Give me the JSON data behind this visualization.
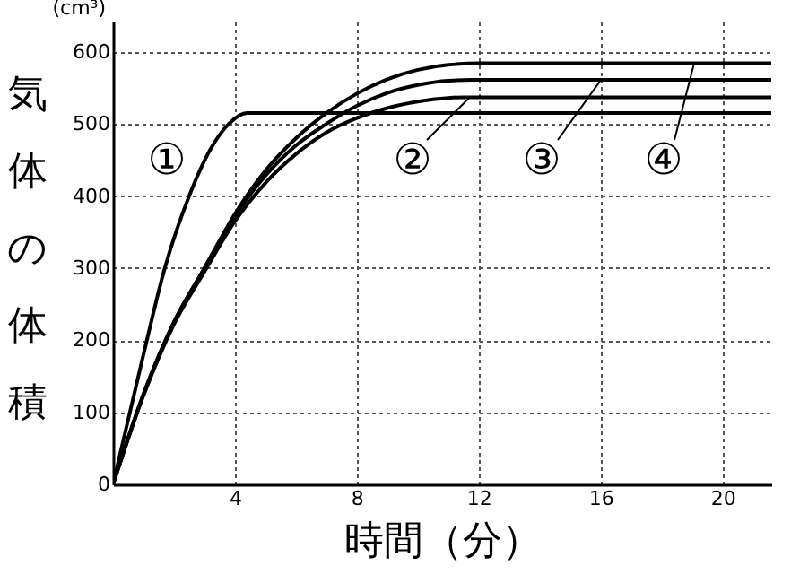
{
  "chart_data": {
    "type": "line",
    "xlabel": "時間（分）",
    "ylabel": "気体の体積",
    "annotations": [
      "(cm³)"
    ],
    "xlim": [
      0,
      21.6
    ],
    "xticks": [
      4,
      8,
      12,
      16,
      20
    ],
    "ylim": [
      0,
      642
    ],
    "yticks": [
      0,
      100,
      200,
      300,
      400,
      500,
      600
    ],
    "grid": true,
    "legend": "top",
    "marker": "none",
    "line_style": "solid",
    "series": [
      {
        "name": "①",
        "color": "#000000",
        "x": [
          0,
          0.5,
          1,
          1.7,
          2.5,
          3.2,
          3.8,
          4.4,
          21.6
        ],
        "values": [
          0,
          90,
          180,
          300,
          400,
          465,
          500,
          515,
          515
        ]
      },
      {
        "name": "②",
        "color": "#000000",
        "x": [
          0,
          1,
          2,
          3,
          4,
          5,
          6,
          7,
          8,
          9,
          10,
          11,
          11.5,
          21.6
        ],
        "values": [
          0,
          123,
          222,
          295,
          365,
          418,
          458,
          488,
          508,
          522,
          531,
          536,
          537,
          537
        ]
      },
      {
        "name": "③",
        "color": "#000000",
        "x": [
          0,
          1,
          2,
          3,
          4,
          5,
          6,
          7,
          8,
          9,
          10,
          11,
          11.8,
          21.6
        ],
        "values": [
          0,
          125,
          225,
          300,
          372,
          428,
          470,
          500,
          525,
          543,
          554,
          560,
          561,
          561
        ]
      },
      {
        "name": "④",
        "color": "#000000",
        "x": [
          0,
          1,
          2,
          3,
          4,
          5,
          6,
          7,
          8,
          9,
          10,
          11,
          12,
          21.6
        ],
        "values": [
          0,
          125,
          225,
          300,
          375,
          435,
          480,
          515,
          542,
          562,
          575,
          582,
          584,
          584
        ]
      }
    ]
  }
}
